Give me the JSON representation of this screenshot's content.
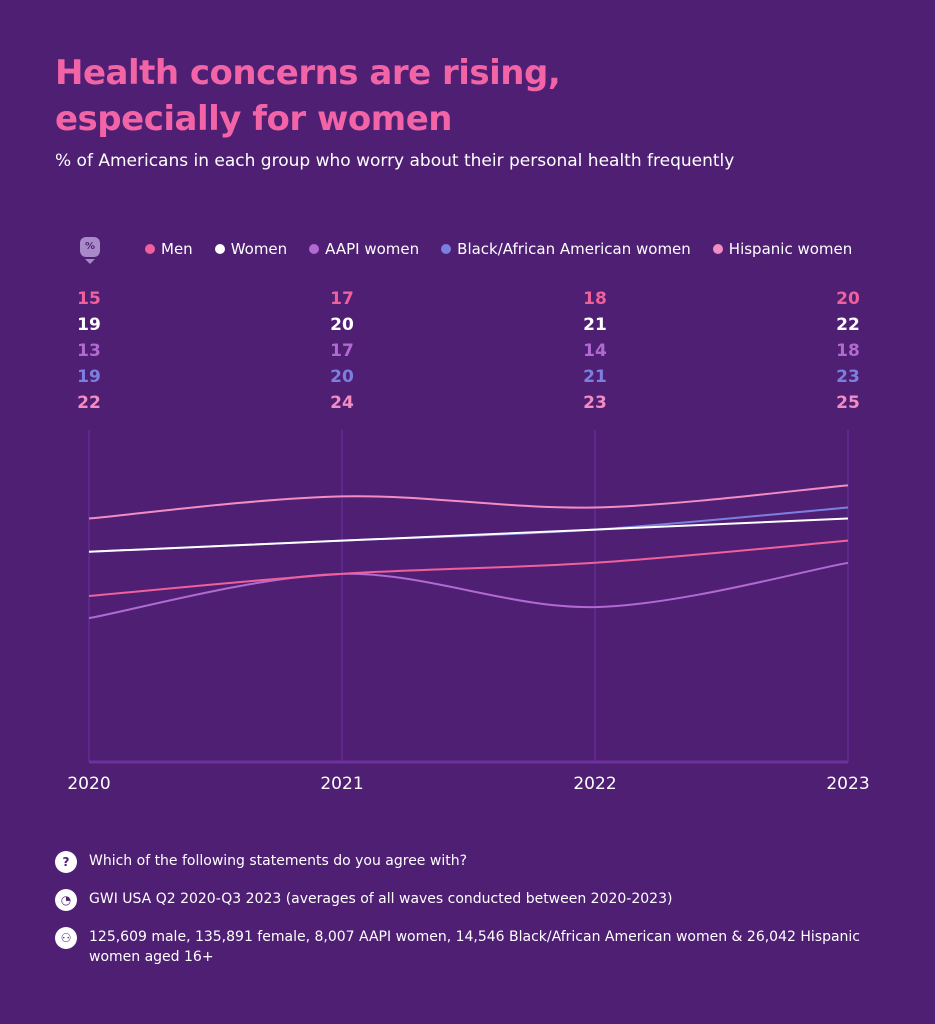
{
  "header": {
    "title_line1": "Health concerns are rising,",
    "title_line2": "especially for women",
    "subtitle": "% of Americans in each group who worry about their personal health frequently",
    "unit_badge": "%"
  },
  "chart_data": {
    "type": "line",
    "x": [
      "2020",
      "2021",
      "2022",
      "2023"
    ],
    "ylim": [
      0,
      30
    ],
    "grid": "vertical lines at each year",
    "legend_position": "top",
    "series": [
      {
        "name": "Men",
        "color": "#f0609a",
        "values": [
          15,
          17,
          18,
          20
        ]
      },
      {
        "name": "Women",
        "color": "#ffffff",
        "values": [
          19,
          20,
          21,
          22
        ]
      },
      {
        "name": "AAPI women",
        "color": "#b06ad0",
        "values": [
          13,
          17,
          14,
          18
        ]
      },
      {
        "name": "Black/African American women",
        "color": "#7b80e0",
        "values": [
          19,
          20,
          21,
          23
        ]
      },
      {
        "name": "Hispanic women",
        "color": "#f48cc4",
        "values": [
          22,
          24,
          23,
          25
        ]
      }
    ]
  },
  "footer": {
    "question": "Which of the following statements do you agree with?",
    "source": "GWI USA Q2 2020-Q3 2023 (averages of all waves conducted between 2020-2023)",
    "base": "125,609 male, 135,891 female, 8,007 AAPI women, 14,546 Black/African American women & 26,042 Hispanic women aged 16+",
    "icons": [
      "question-icon",
      "chart-icon",
      "people-icon"
    ]
  }
}
